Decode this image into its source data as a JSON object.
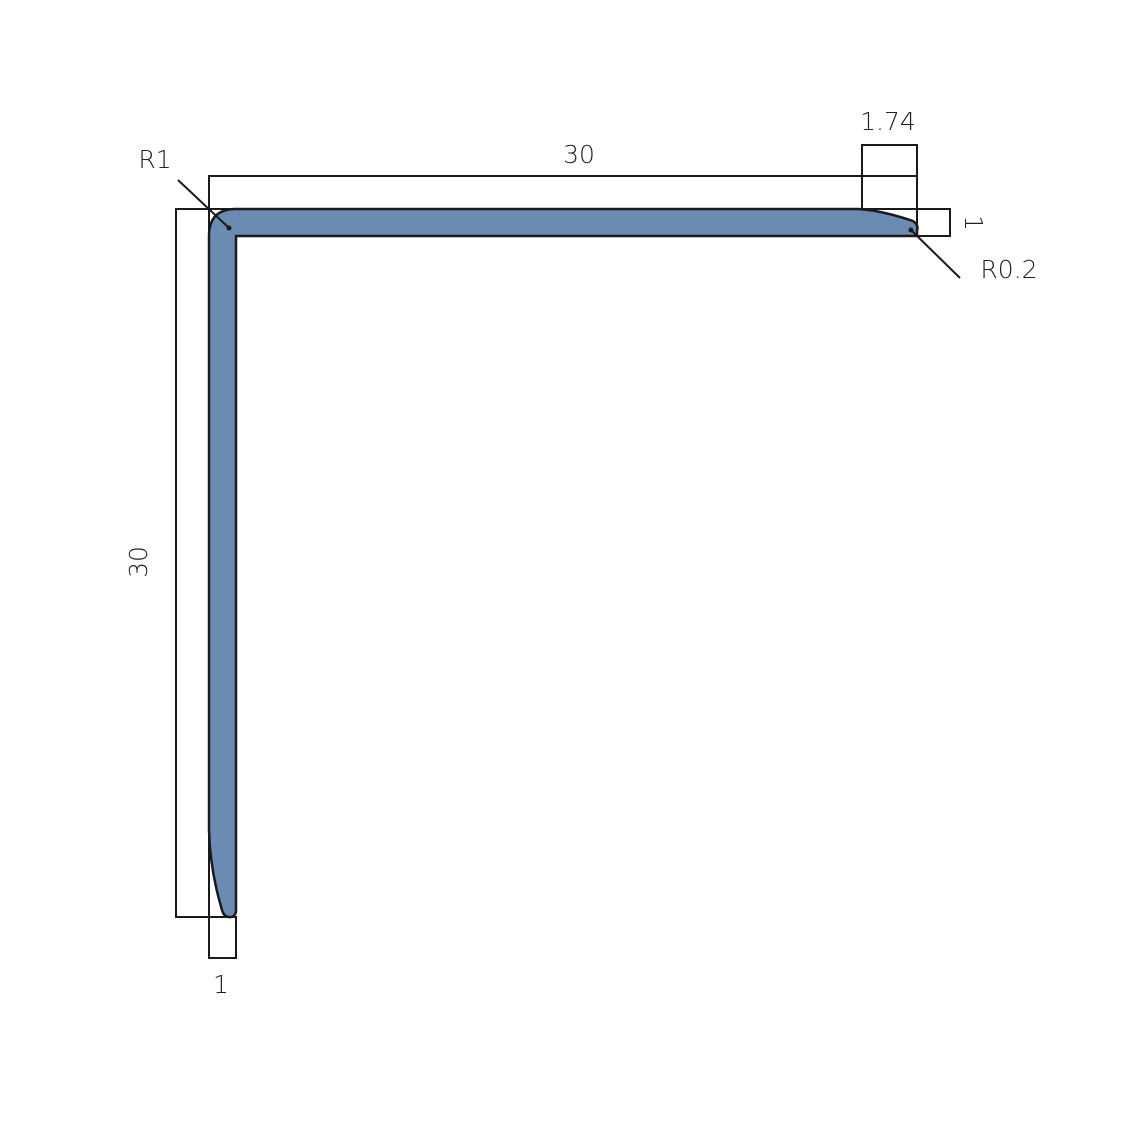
{
  "colors": {
    "profile_fill": "#6b8bb3",
    "line": "#1a1a1a"
  },
  "labels": {
    "radius_inner_corner": "R1",
    "top_length": "30",
    "tip_width": "1.74",
    "top_thickness": "1",
    "radius_tip": "R0.2",
    "left_length": "30",
    "bottom_thickness": "1"
  }
}
